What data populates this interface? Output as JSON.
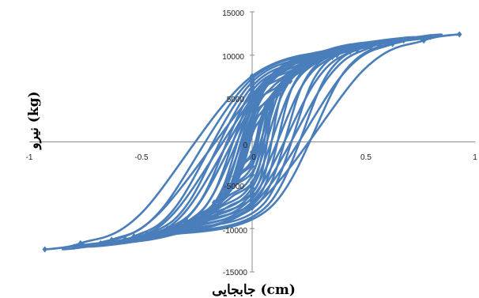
{
  "chart_data": {
    "type": "line",
    "title": "",
    "xlabel": "جابجایی (cm)",
    "ylabel": "نیرو (kg)",
    "xlim": [
      -1,
      1
    ],
    "ylim": [
      -15000,
      15000
    ],
    "x_ticks": [
      "-1",
      "-0.5",
      "0",
      "0.5",
      "1"
    ],
    "y_ticks": [
      "15000",
      "10000",
      "5000",
      "0",
      "-5000",
      "-10000",
      "-15000"
    ],
    "legend": "none",
    "grid": false,
    "series_color": "#4a7ebb",
    "series": [
      {
        "amplitude": 0.08,
        "peak_force": 4000,
        "closing_force": 1200,
        "offset": 0.005,
        "points": [
          [
            -0.08,
            -4000
          ],
          [
            -0.06,
            -3500
          ],
          [
            -0.04,
            -2400
          ],
          [
            0.0,
            1200
          ],
          [
            0.04,
            2500
          ],
          [
            0.06,
            3400
          ],
          [
            0.08,
            4000
          ],
          [
            0.06,
            3500
          ],
          [
            0.04,
            2400
          ],
          [
            0.0,
            -1200
          ],
          [
            -0.04,
            -2500
          ],
          [
            -0.06,
            -3400
          ],
          [
            -0.08,
            -4000
          ]
        ]
      },
      {
        "amplitude": 0.12,
        "peak_force": 5600,
        "closing_force": 2000,
        "offset": 0.01,
        "points": [
          [
            -0.12,
            -5600
          ],
          [
            -0.09,
            -4900
          ],
          [
            -0.06,
            -3500
          ],
          [
            0.0,
            2000
          ],
          [
            0.06,
            3700
          ],
          [
            0.09,
            4800
          ],
          [
            0.12,
            5600
          ],
          [
            0.09,
            4900
          ],
          [
            0.06,
            3500
          ],
          [
            0.0,
            -2000
          ],
          [
            -0.06,
            -3700
          ],
          [
            -0.09,
            -4800
          ],
          [
            -0.12,
            -5600
          ]
        ]
      },
      {
        "amplitude": 0.17,
        "peak_force": 7000,
        "closing_force": 2800,
        "offset": 0.015,
        "points": [
          [
            -0.17,
            -7000
          ],
          [
            -0.13,
            -6100
          ],
          [
            -0.09,
            -4500
          ],
          [
            0.0,
            2800
          ],
          [
            0.09,
            5000
          ],
          [
            0.13,
            6200
          ],
          [
            0.17,
            7000
          ],
          [
            0.13,
            6100
          ],
          [
            0.09,
            4500
          ],
          [
            0.0,
            -2800
          ],
          [
            -0.09,
            -5000
          ],
          [
            -0.13,
            -6200
          ],
          [
            -0.17,
            -7000
          ]
        ]
      },
      {
        "amplitude": 0.23,
        "peak_force": 8300,
        "closing_force": 3800,
        "offset": 0.02,
        "points": [
          [
            -0.23,
            -8300
          ],
          [
            -0.17,
            -7200
          ],
          [
            -0.11,
            -5000
          ],
          [
            0.0,
            3800
          ],
          [
            0.11,
            6300
          ],
          [
            0.17,
            7500
          ],
          [
            0.23,
            8300
          ],
          [
            0.17,
            7200
          ],
          [
            0.11,
            5000
          ],
          [
            0.0,
            -3800
          ],
          [
            -0.11,
            -6300
          ],
          [
            -0.17,
            -7500
          ],
          [
            -0.23,
            -8300
          ]
        ]
      },
      {
        "amplitude": 0.3,
        "peak_force": 9300,
        "closing_force": 4700,
        "offset": 0.03,
        "points": [
          [
            -0.3,
            -9300
          ],
          [
            -0.22,
            -8300
          ],
          [
            -0.13,
            -5200
          ],
          [
            0.0,
            4700
          ],
          [
            0.14,
            7500
          ],
          [
            0.22,
            8700
          ],
          [
            0.3,
            9300
          ],
          [
            0.22,
            8300
          ],
          [
            0.13,
            5200
          ],
          [
            0.0,
            -4700
          ],
          [
            -0.14,
            -7500
          ],
          [
            -0.22,
            -8700
          ],
          [
            -0.3,
            -9300
          ]
        ]
      },
      {
        "amplitude": 0.38,
        "peak_force": 10000,
        "closing_force": 5300,
        "offset": 0.035,
        "points": [
          [
            -0.38,
            -10000
          ],
          [
            -0.29,
            -9200
          ],
          [
            -0.17,
            -5800
          ],
          [
            0.0,
            5300
          ],
          [
            0.18,
            8300
          ],
          [
            0.28,
            9500
          ],
          [
            0.38,
            10000
          ],
          [
            0.29,
            9200
          ],
          [
            0.17,
            5800
          ],
          [
            0.0,
            -5300
          ],
          [
            -0.18,
            -8300
          ],
          [
            -0.28,
            -9500
          ],
          [
            -0.38,
            -10000
          ]
        ]
      },
      {
        "amplitude": 0.47,
        "peak_force": 10600,
        "closing_force": 5900,
        "offset": 0.04,
        "points": [
          [
            -0.47,
            -10600
          ],
          [
            -0.36,
            -9800
          ],
          [
            -0.22,
            -6300
          ],
          [
            0.0,
            5900
          ],
          [
            0.23,
            9000
          ],
          [
            0.35,
            10100
          ],
          [
            0.47,
            10600
          ],
          [
            0.36,
            9800
          ],
          [
            0.22,
            6300
          ],
          [
            0.0,
            -5900
          ],
          [
            -0.23,
            -9000
          ],
          [
            -0.35,
            -10100
          ],
          [
            -0.47,
            -10600
          ]
        ]
      },
      {
        "amplitude": 0.57,
        "peak_force": 11200,
        "closing_force": 6400,
        "offset": 0.05,
        "points": [
          [
            -0.57,
            -11200
          ],
          [
            -0.44,
            -10400
          ],
          [
            -0.28,
            -6800
          ],
          [
            0.0,
            6400
          ],
          [
            0.28,
            9600
          ],
          [
            0.43,
            10700
          ],
          [
            0.57,
            11200
          ],
          [
            0.44,
            10400
          ],
          [
            0.28,
            6800
          ],
          [
            0.0,
            -6400
          ],
          [
            -0.28,
            -9600
          ],
          [
            -0.43,
            -10700
          ],
          [
            -0.57,
            -11200
          ]
        ]
      },
      {
        "amplitude": 0.68,
        "peak_force": 11700,
        "closing_force": 6900,
        "offset": 0.06,
        "points": [
          [
            -0.68,
            -11700
          ],
          [
            -0.53,
            -10900
          ],
          [
            -0.34,
            -7400
          ],
          [
            0.0,
            6900
          ],
          [
            0.34,
            10100
          ],
          [
            0.52,
            11200
          ],
          [
            0.68,
            11700
          ],
          [
            0.53,
            10900
          ],
          [
            0.34,
            7400
          ],
          [
            0.0,
            -6900
          ],
          [
            -0.34,
            -10100
          ],
          [
            -0.52,
            -11200
          ],
          [
            -0.68,
            -11700
          ]
        ]
      },
      {
        "amplitude": 0.8,
        "peak_force": 12100,
        "closing_force": 7300,
        "offset": 0.07,
        "points": [
          [
            -0.8,
            -12100
          ],
          [
            -0.63,
            -11300
          ],
          [
            -0.41,
            -7900
          ],
          [
            0.0,
            7300
          ],
          [
            0.41,
            10600
          ],
          [
            0.62,
            11600
          ],
          [
            0.8,
            12100
          ],
          [
            0.63,
            11300
          ],
          [
            0.41,
            7900
          ],
          [
            0.0,
            -7300
          ],
          [
            -0.41,
            -10600
          ],
          [
            -0.62,
            -11600
          ],
          [
            -0.8,
            -12100
          ]
        ]
      },
      {
        "amplitude": 0.93,
        "peak_force": 12400,
        "closing_force": 7600,
        "offset": 0.08,
        "points": [
          [
            -0.93,
            -12400
          ],
          [
            -0.77,
            -11700
          ],
          [
            -0.5,
            -8300
          ],
          [
            0.0,
            7600
          ],
          [
            0.5,
            10900
          ],
          [
            0.76,
            11900
          ],
          [
            0.93,
            12400
          ],
          [
            0.77,
            11700
          ],
          [
            0.5,
            8300
          ],
          [
            0.0,
            -7600
          ],
          [
            -0.5,
            -10900
          ],
          [
            -0.76,
            -11900
          ],
          [
            -0.93,
            -12400
          ]
        ]
      }
    ]
  }
}
